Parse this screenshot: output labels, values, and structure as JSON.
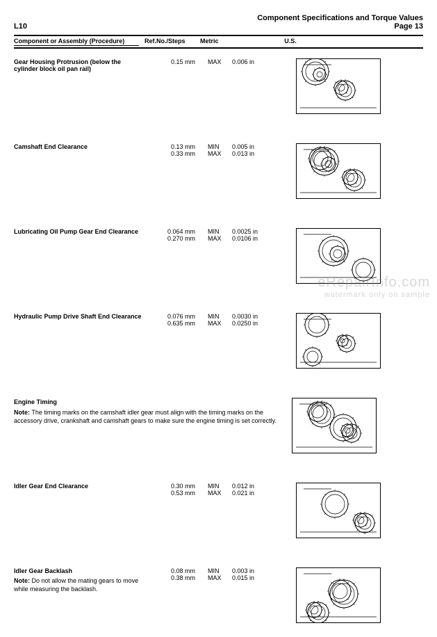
{
  "header": {
    "left": "L10",
    "right_title": "Component Specifications and Torque Values",
    "right_page": "Page 13"
  },
  "columns": {
    "comp": "Component or Assembly (Procedure)",
    "ref": "Ref.No./Steps",
    "metric": "Metric",
    "us": "U.S."
  },
  "rows": [
    {
      "title": "Gear Housing Protrusion (below the cylinder block oil pan rail)",
      "metric": [
        "0.15 mm"
      ],
      "minmax": [
        "MAX"
      ],
      "us": [
        "0.006 in"
      ]
    },
    {
      "title": "Camshaft End Clearance",
      "metric": [
        "0.13 mm",
        "0.33 mm"
      ],
      "minmax": [
        "MIN",
        "MAX"
      ],
      "us": [
        "0.005 in",
        "0.013 in"
      ]
    },
    {
      "title": "Lubricating Oil Pump Gear End Clearance",
      "metric": [
        "0.064 mm",
        "0.270 mm"
      ],
      "minmax": [
        "MIN",
        "MAX"
      ],
      "us": [
        "0.0025 in",
        "0.0106 in"
      ]
    },
    {
      "title": "Hydraulic Pump Drive Shaft End Clearance",
      "metric": [
        "0.076 mm",
        "0.635 mm"
      ],
      "minmax": [
        "MIN",
        "MAX"
      ],
      "us": [
        "0.0030 in",
        "0.0250 in"
      ]
    },
    {
      "title": "Engine Timing",
      "note_prefix": "Note:",
      "note": " The timing marks on the camshaft idler gear must align with the timing marks on the accessory drive, crankshaft and camshaft gears to make sure the engine timing is set correctly.",
      "wide": true
    },
    {
      "title": "Idler Gear End Clearance",
      "metric": [
        "0.30 mm",
        "0.53 mm"
      ],
      "minmax": [
        "MIN",
        "MAX"
      ],
      "us": [
        "0.012 in",
        "0.021 in"
      ]
    },
    {
      "title": "Idler Gear Backlash",
      "note_prefix": "Note:",
      "note": " Do not allow the mating gears to move while measuring the backlash.",
      "metric": [
        "0.08 mm",
        "0.38 mm"
      ],
      "minmax": [
        "MIN",
        "MAX"
      ],
      "us": [
        "0.003 in",
        "0.015 in"
      ]
    }
  ],
  "watermark": {
    "main": "eRepairInfo.com",
    "sub": "watermark only on sample"
  }
}
